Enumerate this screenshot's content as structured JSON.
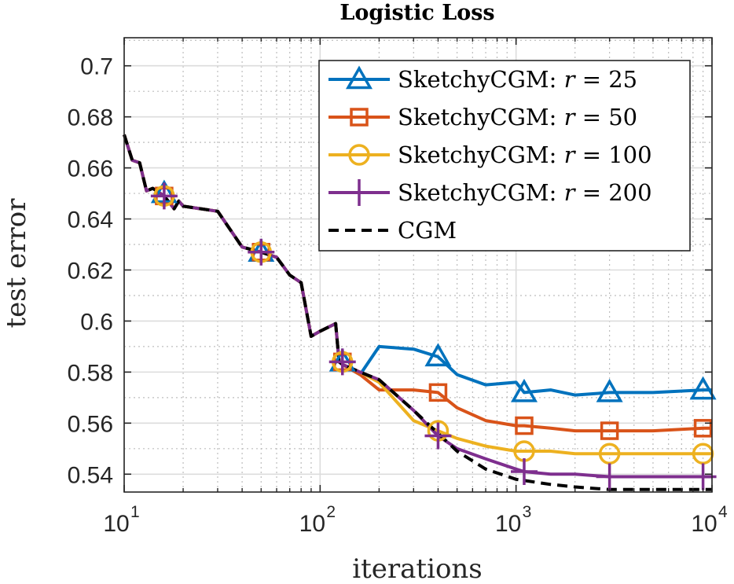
{
  "chart_data": {
    "type": "line",
    "title": "Logistic Loss",
    "xlabel": "iterations",
    "ylabel": "test error",
    "xscale": "log",
    "xlim": [
      10,
      10000
    ],
    "ylim": [
      0.533,
      0.711
    ],
    "x_ticks": [
      10,
      100,
      1000,
      10000
    ],
    "x_tick_labels": [
      {
        "base": "10",
        "exp": "1"
      },
      {
        "base": "10",
        "exp": "2"
      },
      {
        "base": "10",
        "exp": "3"
      },
      {
        "base": "10",
        "exp": "4"
      }
    ],
    "y_ticks": [
      0.54,
      0.56,
      0.58,
      0.6,
      0.62,
      0.64,
      0.66,
      0.68,
      0.7
    ],
    "y_tick_labels": [
      "0.54",
      "0.56",
      "0.58",
      "0.6",
      "0.62",
      "0.64",
      "0.66",
      "0.68",
      "0.7"
    ],
    "grid": true,
    "minor_grid": true,
    "legend_position": "top-right",
    "shared_path": [
      [
        10,
        0.673
      ],
      [
        11,
        0.663
      ],
      [
        12,
        0.662
      ],
      [
        13,
        0.651
      ],
      [
        14,
        0.652
      ],
      [
        16,
        0.649
      ],
      [
        18,
        0.644
      ],
      [
        19,
        0.647
      ],
      [
        20,
        0.645
      ],
      [
        30,
        0.643
      ],
      [
        40,
        0.629
      ],
      [
        50,
        0.627
      ],
      [
        60,
        0.625
      ],
      [
        70,
        0.618
      ],
      [
        80,
        0.615
      ],
      [
        90,
        0.594
      ],
      [
        100,
        0.596
      ],
      [
        120,
        0.599
      ],
      [
        125,
        0.584
      ]
    ],
    "series": [
      {
        "name": "SketchyCGM: r = 25",
        "legend_prefix": "SketchyCGM: ",
        "legend_var": "r",
        "legend_value": "= 25",
        "color": "#0072BD",
        "marker": "triangle",
        "dash": "",
        "tail": [
          [
            130,
            0.583
          ],
          [
            160,
            0.579
          ],
          [
            200,
            0.59
          ],
          [
            300,
            0.589
          ],
          [
            400,
            0.586
          ],
          [
            500,
            0.579
          ],
          [
            700,
            0.575
          ],
          [
            1000,
            0.576
          ],
          [
            1100,
            0.572
          ],
          [
            1500,
            0.573
          ],
          [
            2000,
            0.571
          ],
          [
            3000,
            0.572
          ],
          [
            5000,
            0.572
          ],
          [
            9000,
            0.573
          ],
          [
            10000,
            0.573
          ]
        ],
        "markers": [
          [
            16,
            0.65
          ],
          [
            50,
            0.627
          ],
          [
            130,
            0.584
          ],
          [
            400,
            0.586
          ],
          [
            1100,
            0.572
          ],
          [
            3000,
            0.572
          ],
          [
            9000,
            0.573
          ]
        ]
      },
      {
        "name": "SketchyCGM: r = 50",
        "legend_prefix": "SketchyCGM: ",
        "legend_var": "r",
        "legend_value": "= 50",
        "color": "#D95319",
        "marker": "square",
        "dash": "",
        "tail": [
          [
            130,
            0.583
          ],
          [
            160,
            0.579
          ],
          [
            200,
            0.573
          ],
          [
            300,
            0.573
          ],
          [
            400,
            0.572
          ],
          [
            500,
            0.566
          ],
          [
            700,
            0.561
          ],
          [
            1000,
            0.559
          ],
          [
            1100,
            0.559
          ],
          [
            1500,
            0.558
          ],
          [
            2000,
            0.557
          ],
          [
            3000,
            0.557
          ],
          [
            5000,
            0.557
          ],
          [
            9000,
            0.558
          ],
          [
            10000,
            0.558
          ]
        ],
        "markers": [
          [
            16,
            0.649
          ],
          [
            50,
            0.627
          ],
          [
            130,
            0.584
          ],
          [
            400,
            0.572
          ],
          [
            1100,
            0.559
          ],
          [
            3000,
            0.557
          ],
          [
            9000,
            0.558
          ]
        ]
      },
      {
        "name": "SketchyCGM: r = 100",
        "legend_prefix": "SketchyCGM: ",
        "legend_var": "r",
        "legend_value": "= 100",
        "color": "#EDB120",
        "marker": "circle",
        "dash": "",
        "tail": [
          [
            130,
            0.583
          ],
          [
            160,
            0.58
          ],
          [
            200,
            0.576
          ],
          [
            300,
            0.561
          ],
          [
            400,
            0.557
          ],
          [
            500,
            0.554
          ],
          [
            700,
            0.551
          ],
          [
            1000,
            0.549
          ],
          [
            1100,
            0.549
          ],
          [
            1500,
            0.549
          ],
          [
            2000,
            0.548
          ],
          [
            3000,
            0.548
          ],
          [
            5000,
            0.548
          ],
          [
            9000,
            0.548
          ],
          [
            10000,
            0.548
          ]
        ],
        "markers": [
          [
            16,
            0.649
          ],
          [
            50,
            0.627
          ],
          [
            130,
            0.584
          ],
          [
            400,
            0.557
          ],
          [
            1100,
            0.549
          ],
          [
            3000,
            0.548
          ],
          [
            9000,
            0.548
          ]
        ]
      },
      {
        "name": "SketchyCGM: r = 200",
        "legend_prefix": "SketchyCGM: ",
        "legend_var": "r",
        "legend_value": "= 200",
        "color": "#7E2F8E",
        "marker": "plus",
        "dash": "",
        "tail": [
          [
            130,
            0.583
          ],
          [
            160,
            0.58
          ],
          [
            200,
            0.577
          ],
          [
            300,
            0.565
          ],
          [
            400,
            0.555
          ],
          [
            500,
            0.55
          ],
          [
            700,
            0.546
          ],
          [
            1000,
            0.542
          ],
          [
            1100,
            0.541
          ],
          [
            1500,
            0.54
          ],
          [
            2000,
            0.54
          ],
          [
            3000,
            0.539
          ],
          [
            5000,
            0.539
          ],
          [
            9000,
            0.539
          ],
          [
            10000,
            0.539
          ]
        ],
        "markers": [
          [
            16,
            0.649
          ],
          [
            50,
            0.627
          ],
          [
            130,
            0.584
          ],
          [
            400,
            0.555
          ],
          [
            1100,
            0.541
          ],
          [
            3000,
            0.539
          ],
          [
            9000,
            0.539
          ]
        ]
      },
      {
        "name": "CGM",
        "legend_prefix": "CGM",
        "legend_var": "",
        "legend_value": "",
        "color": "#000000",
        "marker": "none",
        "dash": "13 8",
        "tail": [
          [
            130,
            0.583
          ],
          [
            160,
            0.58
          ],
          [
            200,
            0.577
          ],
          [
            300,
            0.565
          ],
          [
            400,
            0.556
          ],
          [
            500,
            0.549
          ],
          [
            700,
            0.542
          ],
          [
            1000,
            0.538
          ],
          [
            1500,
            0.536
          ],
          [
            2000,
            0.535
          ],
          [
            3000,
            0.534
          ],
          [
            5000,
            0.534
          ],
          [
            9000,
            0.534
          ],
          [
            10000,
            0.534
          ]
        ],
        "markers": []
      }
    ]
  }
}
